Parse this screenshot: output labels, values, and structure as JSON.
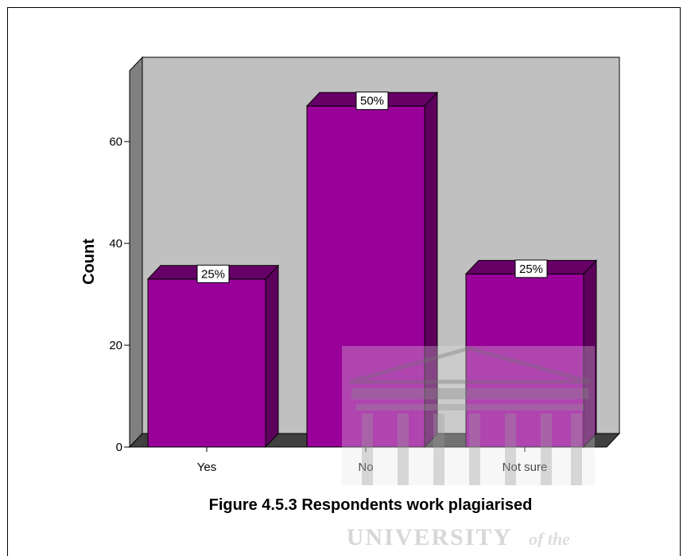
{
  "chart_data": {
    "type": "bar",
    "categories": [
      "Yes",
      "No",
      "Not sure"
    ],
    "values": [
      33,
      67,
      34
    ],
    "data_labels": [
      "25%",
      "50%",
      "25%"
    ],
    "ylabel": "Count",
    "xlabel": "",
    "yticks": [
      0,
      20,
      40,
      60
    ],
    "ylim": [
      0,
      74
    ],
    "grid": false,
    "style": "3d",
    "colors": {
      "bar_front": "#990099",
      "bar_side": "#5c005c",
      "bar_top": "#660066",
      "plot_back": "#c0c0c0",
      "plot_wall": "#808080",
      "plot_floor": "#404040"
    }
  },
  "caption": "Figure 4.5.3 Respondents work plagiarised",
  "watermark": {
    "text": "UNIVERSITY",
    "text_suffix": "of the"
  }
}
